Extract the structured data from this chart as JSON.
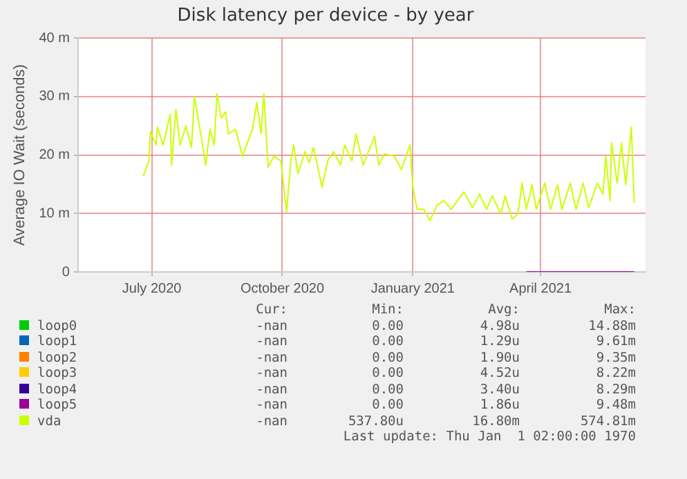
{
  "chart_data": {
    "type": "line",
    "title": "Disk latency per device - by year",
    "ylabel": "Average IO Wait (seconds)",
    "xlim": [
      "2020-05-10",
      "2021-06-14"
    ],
    "xticks": [
      {
        "value": "2020-07-01",
        "label": "July 2020"
      },
      {
        "value": "2020-10-01",
        "label": "October 2020"
      },
      {
        "value": "2021-01-01",
        "label": "January 2021"
      },
      {
        "value": "2021-04-01",
        "label": "April 2021"
      }
    ],
    "ylim": [
      0,
      40
    ],
    "yticks": [
      0,
      {
        "value": 10,
        "label": "10 m"
      },
      {
        "value": 20,
        "label": "20 m"
      },
      {
        "value": 30,
        "label": "30 m"
      },
      {
        "value": 40,
        "label": "40 m"
      }
    ],
    "grid": true,
    "legend": "bottom",
    "marker": "none",
    "line_style": "solid",
    "series": [
      {
        "name": "loop0",
        "color": "#00cc00"
      },
      {
        "name": "loop1",
        "color": "#0066b3"
      },
      {
        "name": "loop2",
        "color": "#ff8000"
      },
      {
        "name": "loop3",
        "color": "#ffcc00"
      },
      {
        "name": "loop4",
        "color": "#330099"
      },
      {
        "name": "loop5",
        "color": "#990099",
        "x": [
          "2021-03-22",
          "2021-06-06"
        ],
        "values": [
          0,
          0
        ]
      },
      {
        "name": "vda",
        "color": "#ccff00",
        "x": [
          "2020-06-25",
          "2020-06-29",
          "2020-06-30",
          "2020-07-04",
          "2020-07-05",
          "2020-07-09",
          "2020-07-14",
          "2020-07-15",
          "2020-07-18",
          "2020-07-21",
          "2020-07-25",
          "2020-07-29",
          "2020-07-31",
          "2020-08-04",
          "2020-08-08",
          "2020-08-11",
          "2020-08-14",
          "2020-08-16",
          "2020-08-19",
          "2020-08-22",
          "2020-08-24",
          "2020-08-29",
          "2020-09-03",
          "2020-09-07",
          "2020-09-10",
          "2020-09-13",
          "2020-09-16",
          "2020-09-18",
          "2020-09-21",
          "2020-09-25",
          "2020-09-30",
          "2020-10-04",
          "2020-10-07",
          "2020-10-09",
          "2020-10-12",
          "2020-10-17",
          "2020-10-20",
          "2020-10-23",
          "2020-10-29",
          "2020-11-02",
          "2020-11-06",
          "2020-11-11",
          "2020-11-14",
          "2020-11-19",
          "2020-11-22",
          "2020-11-27",
          "2020-12-05",
          "2020-12-08",
          "2020-12-12",
          "2020-12-19",
          "2020-12-24",
          "2020-12-30",
          "2021-01-01",
          "2021-01-04",
          "2021-01-09",
          "2021-01-13",
          "2021-01-18",
          "2021-01-23",
          "2021-01-28",
          "2021-02-06",
          "2021-02-12",
          "2021-02-17",
          "2021-02-22",
          "2021-02-26",
          "2021-03-04",
          "2021-03-07",
          "2021-03-12",
          "2021-03-16",
          "2021-03-19",
          "2021-03-22",
          "2021-03-26",
          "2021-03-29",
          "2021-04-04",
          "2021-04-08",
          "2021-04-13",
          "2021-04-16",
          "2021-04-22",
          "2021-04-26",
          "2021-05-01",
          "2021-05-05",
          "2021-05-11",
          "2021-05-15",
          "2021-05-17",
          "2021-05-20",
          "2021-05-21",
          "2021-05-25",
          "2021-05-28",
          "2021-05-31",
          "2021-06-04",
          "2021-06-06"
        ],
        "values": [
          16.4,
          19,
          24,
          21.7,
          24.8,
          21.7,
          27,
          18.3,
          27.8,
          21.7,
          25,
          21.3,
          30,
          24.4,
          18.3,
          24.4,
          21.7,
          30.5,
          26.3,
          27.4,
          23.6,
          24.4,
          19.8,
          22.5,
          24.4,
          29,
          23.6,
          30.5,
          17.9,
          19.8,
          19,
          10.3,
          19,
          21.7,
          16.8,
          20.6,
          18.7,
          21.3,
          14.5,
          19,
          20.6,
          18.3,
          21.7,
          19,
          23.6,
          18.3,
          23.2,
          18.3,
          20.2,
          19.8,
          17.5,
          21.7,
          14.5,
          10.7,
          10.7,
          8.8,
          11.4,
          12.2,
          10.7,
          13.7,
          11,
          13.3,
          10.7,
          13,
          9.9,
          13,
          9.1,
          9.9,
          15.2,
          10.7,
          14.9,
          10.7,
          15.2,
          10.7,
          14.9,
          10.7,
          15.2,
          10.7,
          15.2,
          11,
          15.2,
          13.3,
          19.8,
          12.2,
          22.1,
          15.2,
          22.1,
          14.9,
          24.8,
          11.8
        ]
      }
    ],
    "annotations": [
      "Cur:",
      "Min:",
      "Avg:",
      "Max:",
      "-nan",
      "0.00",
      "4.98u",
      "14.88m",
      "-nan",
      "0.00",
      "1.29u",
      "9.61m",
      "-nan",
      "0.00",
      "1.90u",
      "9.35m",
      "-nan",
      "0.00",
      "4.52u",
      "8.22m",
      "-nan",
      "0.00",
      "3.40u",
      "8.29m",
      "-nan",
      "0.00",
      "1.86u",
      "9.48m",
      "-nan",
      "537.80u",
      "16.80m",
      "574.81m",
      "Last update: Thu Jan  1 02:00:00 1970"
    ]
  }
}
